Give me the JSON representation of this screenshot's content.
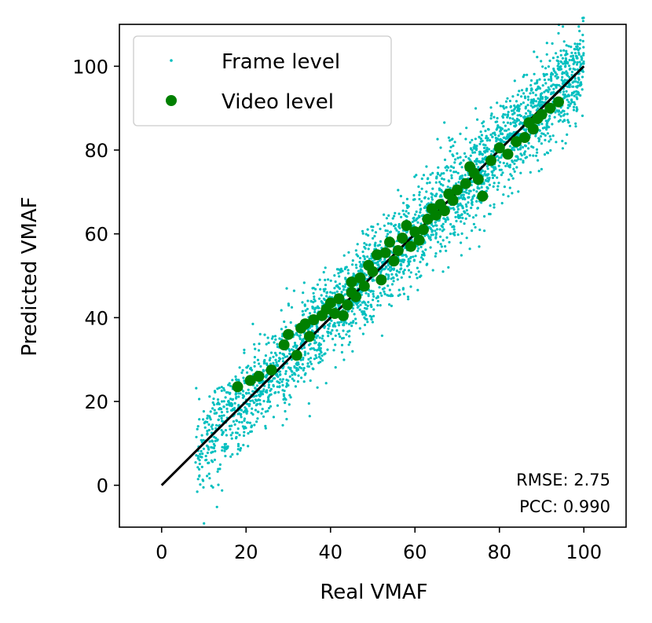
{
  "chart_data": {
    "type": "scatter",
    "title": "",
    "xlabel": "Real VMAF",
    "ylabel": "Predicted VMAF",
    "xlim": [
      -10,
      110
    ],
    "ylim": [
      -10,
      110
    ],
    "x_ticks": [
      "0",
      "20",
      "40",
      "60",
      "80",
      "100"
    ],
    "y_ticks": [
      "0",
      "20",
      "40",
      "60",
      "80",
      "100"
    ],
    "grid": false,
    "legend_position": "top-left",
    "series": [
      {
        "name": "Frame level",
        "color": "#00bfbf",
        "marker": "dot",
        "n_points": 3000,
        "x_range": [
          8,
          100
        ],
        "noise_sd": 5.5
      },
      {
        "name": "Video level",
        "color": "#008000",
        "marker": "circle",
        "x": [
          18,
          21,
          23,
          26,
          29,
          30,
          32,
          33,
          34,
          35,
          36,
          38,
          39,
          40,
          41,
          42,
          43,
          44,
          45,
          45,
          46,
          47,
          48,
          49,
          50,
          51,
          52,
          53,
          54,
          55,
          56,
          57,
          58,
          59,
          60,
          61,
          62,
          63,
          64,
          65,
          66,
          67,
          68,
          69,
          70,
          72,
          73,
          74,
          75,
          76,
          78,
          80,
          82,
          84,
          86,
          87,
          88,
          89,
          90,
          92,
          94
        ],
        "y": [
          23.5,
          25,
          26,
          27.5,
          33.5,
          36,
          31,
          37.5,
          38.5,
          35.5,
          39.5,
          40.5,
          42,
          43.5,
          41,
          44.5,
          40.5,
          43,
          48.5,
          46,
          45,
          49.5,
          47.5,
          52.5,
          51,
          55,
          49,
          55.5,
          58,
          53.5,
          56,
          59,
          62,
          57,
          60.5,
          58.5,
          61,
          63.5,
          66,
          64.5,
          67,
          65.5,
          69.5,
          68,
          70.5,
          72,
          76,
          74.5,
          73,
          69,
          77.5,
          80.5,
          79,
          82,
          83,
          86.5,
          85,
          87.5,
          88.5,
          90,
          91.5
        ]
      },
      {
        "name": "",
        "color": "#000000",
        "marker": "line",
        "x": [
          0,
          100
        ],
        "y": [
          0,
          100
        ]
      }
    ],
    "annotations": {
      "rmse": "RMSE: 2.75",
      "pcc": "PCC: 0.990"
    }
  }
}
